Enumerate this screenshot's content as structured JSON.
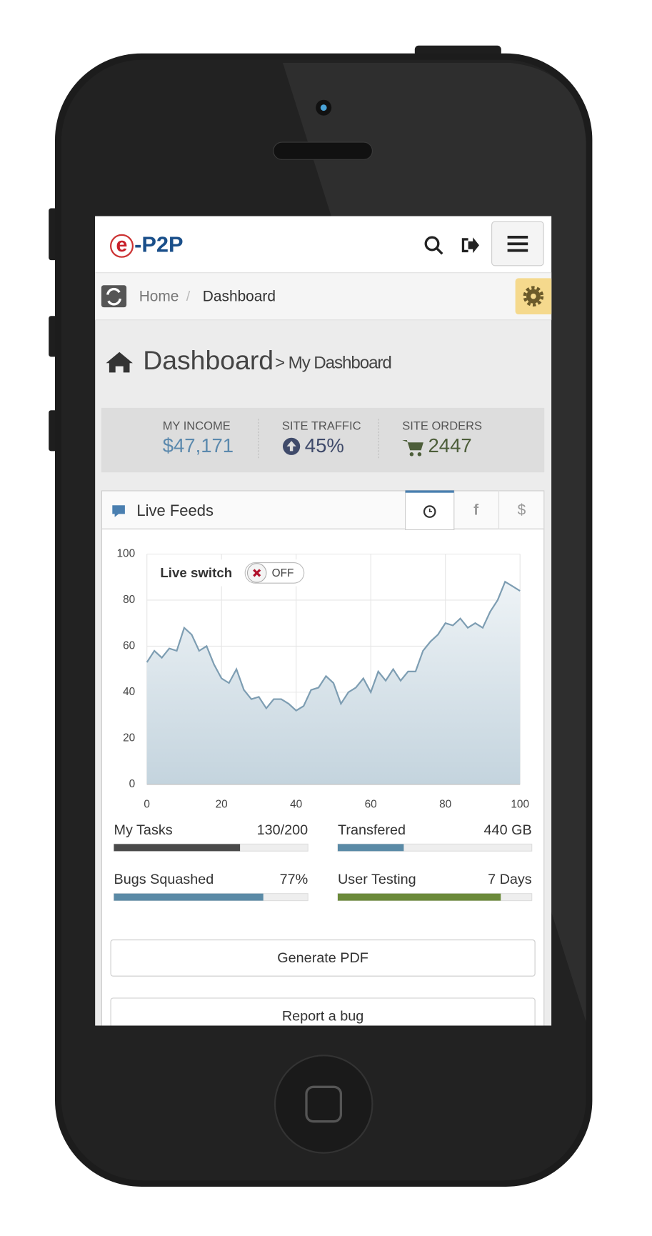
{
  "header": {
    "logo_mark": "e",
    "logo_text": "-P2P"
  },
  "breadcrumb": {
    "items": [
      "Home",
      "Dashboard"
    ],
    "separator": "/"
  },
  "page_title": {
    "title": "Dashboard",
    "subtitle": "> My Dashboard"
  },
  "stats": [
    {
      "label": "MY INCOME",
      "value": "$47,171"
    },
    {
      "label": "SITE TRAFFIC",
      "value": "45%"
    },
    {
      "label": "SITE ORDERS",
      "value": "2447"
    }
  ],
  "panel": {
    "title": "Live Feeds",
    "tabs": [
      "f",
      "$"
    ]
  },
  "live_switch": {
    "label": "Live switch",
    "state": "OFF"
  },
  "chart_data": {
    "type": "line",
    "color": "#7d9db2",
    "grid": true,
    "x": [
      0,
      2,
      4,
      6,
      8,
      10,
      12,
      14,
      16,
      18,
      20,
      22,
      24,
      26,
      28,
      30,
      32,
      34,
      36,
      38,
      40,
      42,
      44,
      46,
      48,
      50,
      52,
      54,
      56,
      58,
      60,
      62,
      64,
      66,
      68,
      70,
      72,
      74,
      76,
      78,
      80,
      82,
      84,
      86,
      88,
      90,
      92,
      94,
      96,
      98,
      100
    ],
    "values": [
      53,
      58,
      55,
      59,
      58,
      68,
      65,
      58,
      60,
      52,
      46,
      44,
      50,
      41,
      37,
      38,
      33,
      37,
      37,
      35,
      32,
      34,
      41,
      42,
      47,
      44,
      35,
      40,
      42,
      46,
      40,
      49,
      45,
      50,
      45,
      49,
      49,
      58,
      62,
      65,
      70,
      69,
      72,
      68,
      70,
      68,
      75,
      80,
      88,
      86,
      84
    ],
    "xlim": [
      0,
      100
    ],
    "ylim": [
      0,
      100
    ],
    "xticks": [
      0,
      20,
      40,
      60,
      80,
      100
    ],
    "yticks": [
      0,
      20,
      40,
      60,
      80,
      100
    ]
  },
  "progress": [
    {
      "label": "My Tasks",
      "text": "130/200",
      "percent": 65,
      "color": "#4a4a4a"
    },
    {
      "label": "Transfered",
      "text": "440 GB",
      "percent": 34,
      "color": "#5a8aa6"
    },
    {
      "label": "Bugs Squashed",
      "text": "77%",
      "percent": 77,
      "color": "#5a8aa6"
    },
    {
      "label": "User Testing",
      "text": "7 Days",
      "percent": 84,
      "color": "#6b8a3a"
    }
  ],
  "buttons": [
    "Generate PDF",
    "Report a bug"
  ]
}
